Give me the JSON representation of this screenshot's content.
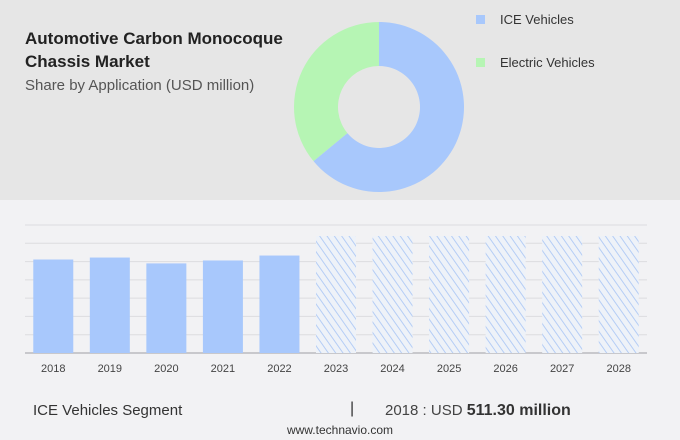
{
  "header": {
    "title": "Automotive Carbon Monocoque Chassis Market",
    "subtitle": "Share by Application (USD million)"
  },
  "chart_data": [
    {
      "type": "pie",
      "donut": true,
      "slices": [
        {
          "name": "ICE Vehicles",
          "value": 64,
          "color": "#a8c8fc"
        },
        {
          "name": "Electric Vehicles",
          "value": 36,
          "color": "#b6f5b4"
        }
      ],
      "legend_position": "right"
    },
    {
      "type": "bar",
      "categories": [
        "2018",
        "2019",
        "2020",
        "2021",
        "2022",
        "2023",
        "2024",
        "2025",
        "2026",
        "2027",
        "2028"
      ],
      "values": [
        511.3,
        522,
        490,
        506,
        533,
        null,
        null,
        null,
        null,
        null,
        null
      ],
      "forecast_categories": [
        "2023",
        "2024",
        "2025",
        "2026",
        "2027",
        "2028"
      ],
      "ylim": [
        0,
        700
      ],
      "grid": true,
      "color": "#a8c8fc"
    }
  ],
  "footer": {
    "segment": "ICE Vehicles Segment",
    "separator": "|",
    "year_label": "2018 : USD",
    "value": "511.30 million",
    "url": "www.technavio.com"
  }
}
